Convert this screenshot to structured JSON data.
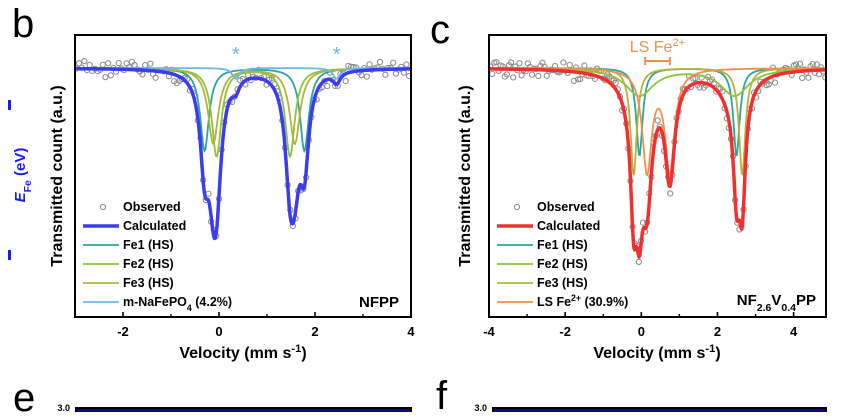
{
  "side_label": {
    "text_main": "E",
    "text_sub": "Fe",
    "text_unit": " (eV)",
    "color": "#1a1aff"
  },
  "chart_data": [
    {
      "panel": "b",
      "type": "line",
      "title": "",
      "xlabel": "Velocity (mm s-1)",
      "ylabel": "Transmitted count (a.u.)",
      "xlim": [
        -3,
        4
      ],
      "ylim": [
        0.0,
        1.0
      ],
      "xticks": [
        -2,
        0,
        2,
        4
      ],
      "grid": false,
      "legend_position": "bottom-left",
      "sample_label": "NFPP",
      "annotations": [
        {
          "text": "*",
          "x": 0.35,
          "color": "#6eb8f0"
        },
        {
          "text": "*",
          "x": 2.45,
          "color": "#6eb8f0"
        }
      ],
      "series": [
        {
          "name": "Observed",
          "kind": "scatter",
          "color": "#888888"
        },
        {
          "name": "Calculated",
          "kind": "line",
          "color": "#3b3bf0",
          "sum": true
        },
        {
          "name": "Fe1 (HS)",
          "kind": "doublet",
          "color": "#2aa5a0",
          "centers": [
            -0.3,
            1.78
          ],
          "depth": 0.46,
          "width": 0.22
        },
        {
          "name": "Fe2 (HS)",
          "kind": "doublet",
          "color": "#8cc43c",
          "centers": [
            -0.05,
            1.48
          ],
          "depth": 0.49,
          "width": 0.24
        },
        {
          "name": "Fe3 (HS)",
          "kind": "doublet",
          "color": "#b5b23a",
          "centers": [
            -0.12,
            1.58
          ],
          "depth": 0.42,
          "width": 0.26
        },
        {
          "name": "m-NaFePO4 (4.2%)",
          "kind": "doublet",
          "color": "#6eb8f0",
          "centers": [
            0.35,
            2.45
          ],
          "depth": 0.06,
          "width": 0.18
        }
      ],
      "legend": [
        {
          "label": "Observed"
        },
        {
          "label": "Calculated"
        },
        {
          "label": "Fe1 (HS)"
        },
        {
          "label": "Fe2 (HS)"
        },
        {
          "label": "Fe3 (HS)"
        },
        {
          "label_main": "m-NaFePO",
          "label_sub": "4",
          "label_tail": " (4.2%)"
        }
      ]
    },
    {
      "panel": "c",
      "type": "line",
      "title": "",
      "xlabel": "Velocity (mm s-1)",
      "ylabel": "Transmitted count (a.u.)",
      "xlim": [
        -4,
        4.85
      ],
      "ylim": [
        0.0,
        1.0
      ],
      "xticks": [
        -4,
        -2,
        0,
        2,
        4
      ],
      "grid": false,
      "legend_position": "bottom-left",
      "sample_label": {
        "parts": [
          "NF",
          "2.6",
          "V",
          "0.4",
          "PP"
        ]
      },
      "annotations": [
        {
          "text_main": "LS Fe",
          "text_sup": "2+",
          "color": "#f0914a",
          "bracket_x": [
            0.1,
            0.75
          ]
        }
      ],
      "series": [
        {
          "name": "Observed",
          "kind": "scatter",
          "color": "#888888"
        },
        {
          "name": "Calculated",
          "kind": "line",
          "color": "#f03030",
          "sum": true
        },
        {
          "name": "Fe1 (HS)",
          "kind": "doublet",
          "color": "#2aa5a0",
          "centers": [
            -0.05,
            2.5
          ],
          "depth": 0.45,
          "width": 0.2
        },
        {
          "name": "Fe2 (HS)",
          "kind": "doublet",
          "color": "#8cc43c",
          "centers": [
            -0.05,
            2.45
          ],
          "depth": 0.14,
          "width": 0.9
        },
        {
          "name": "Fe3 (HS)",
          "kind": "doublet",
          "color": "#b5b23a",
          "centers": [
            -0.2,
            2.65
          ],
          "depth": 0.55,
          "width": 0.2
        },
        {
          "name": "LS Fe2+ (30.9%)",
          "kind": "doublet",
          "color": "#f0914a",
          "centers": [
            0.15,
            0.75
          ],
          "depth": 0.52,
          "width": 0.3
        }
      ],
      "legend": [
        {
          "label": "Observed"
        },
        {
          "label": "Calculated"
        },
        {
          "label": "Fe1 (HS)"
        },
        {
          "label": "Fe2 (HS)"
        },
        {
          "label": "Fe3 (HS)"
        },
        {
          "label_main": "LS Fe",
          "label_sup": "2+",
          "label_tail": " (30.9%)"
        }
      ]
    }
  ],
  "panels": {
    "b": "b",
    "c": "c",
    "e": "e",
    "f": "f"
  },
  "bottom_panels": {
    "e_ytick": "3.0",
    "f_ytick": "3.0"
  }
}
